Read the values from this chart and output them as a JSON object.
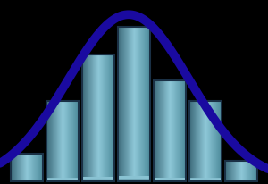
{
  "bar_heights": [
    0.18,
    0.52,
    0.82,
    1.0,
    0.65,
    0.52,
    0.13
  ],
  "bar_gradient_left": "#3a6878",
  "bar_gradient_center": "#8ec8d8",
  "bar_gradient_right": "#4a8898",
  "bar_edge_color": "#1a3045",
  "bar_edge_width": 1.5,
  "bar_positions": [
    1,
    2,
    3,
    4,
    5,
    6,
    7
  ],
  "bar_width": 0.92,
  "curve_color": "#1a0aa0",
  "curve_linewidth": 7.0,
  "curve_mean": 3.85,
  "curve_std": 1.7,
  "curve_amplitude": 1.08,
  "background_color": "#000000",
  "xlim": [
    0.25,
    7.75
  ],
  "ylim": [
    -0.02,
    1.18
  ]
}
